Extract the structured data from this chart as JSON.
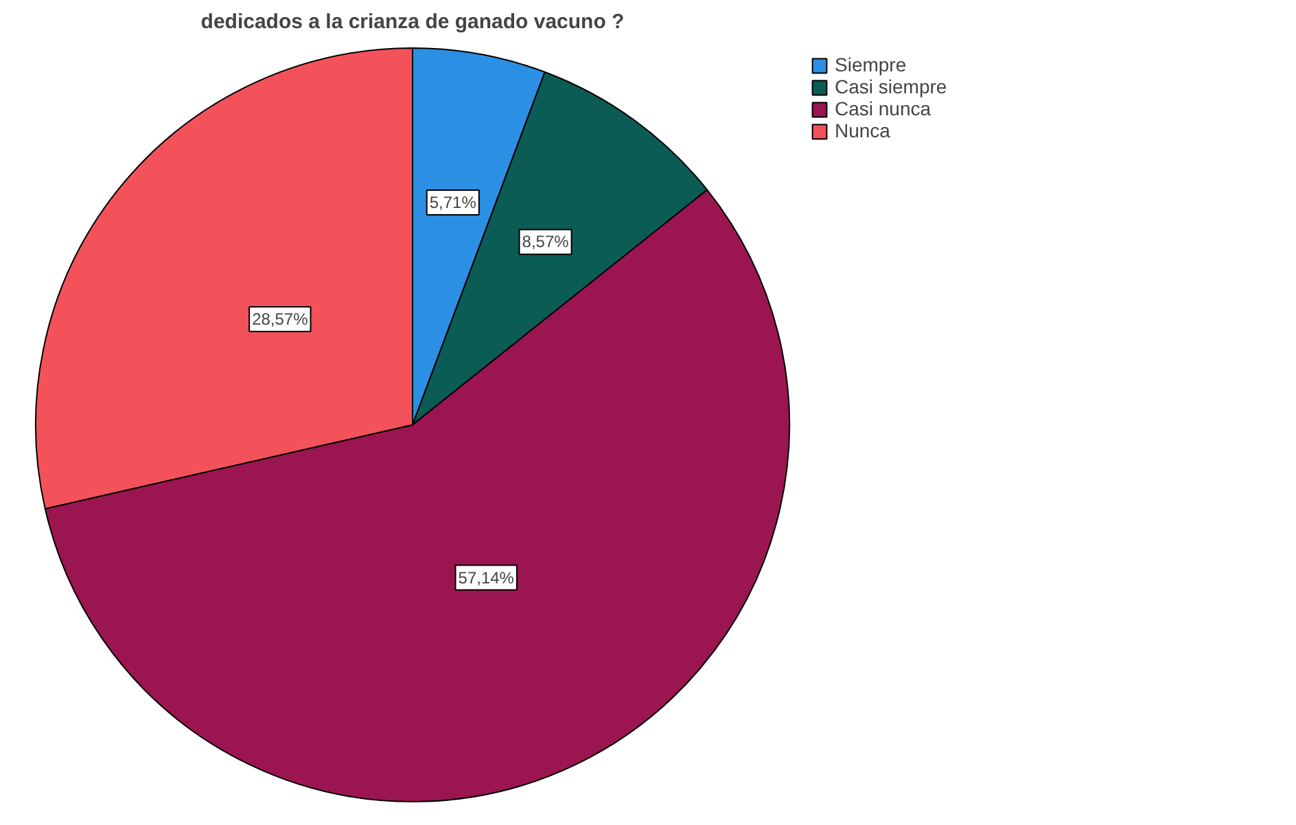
{
  "chart_data": {
    "type": "pie",
    "title": "dedicados a la crianza de ganado vacuno ?",
    "categories": [
      "Siempre",
      "Casi siempre",
      "Casi nunca",
      "Nunca"
    ],
    "values": [
      5.71,
      8.57,
      57.14,
      28.57
    ],
    "colors": [
      "#2b8fe3",
      "#0b5c55",
      "#9b1551",
      "#f4525a"
    ],
    "value_labels": [
      "5,71%",
      "8,57%",
      "57,14%",
      "28,57%"
    ],
    "legend": "top right"
  }
}
